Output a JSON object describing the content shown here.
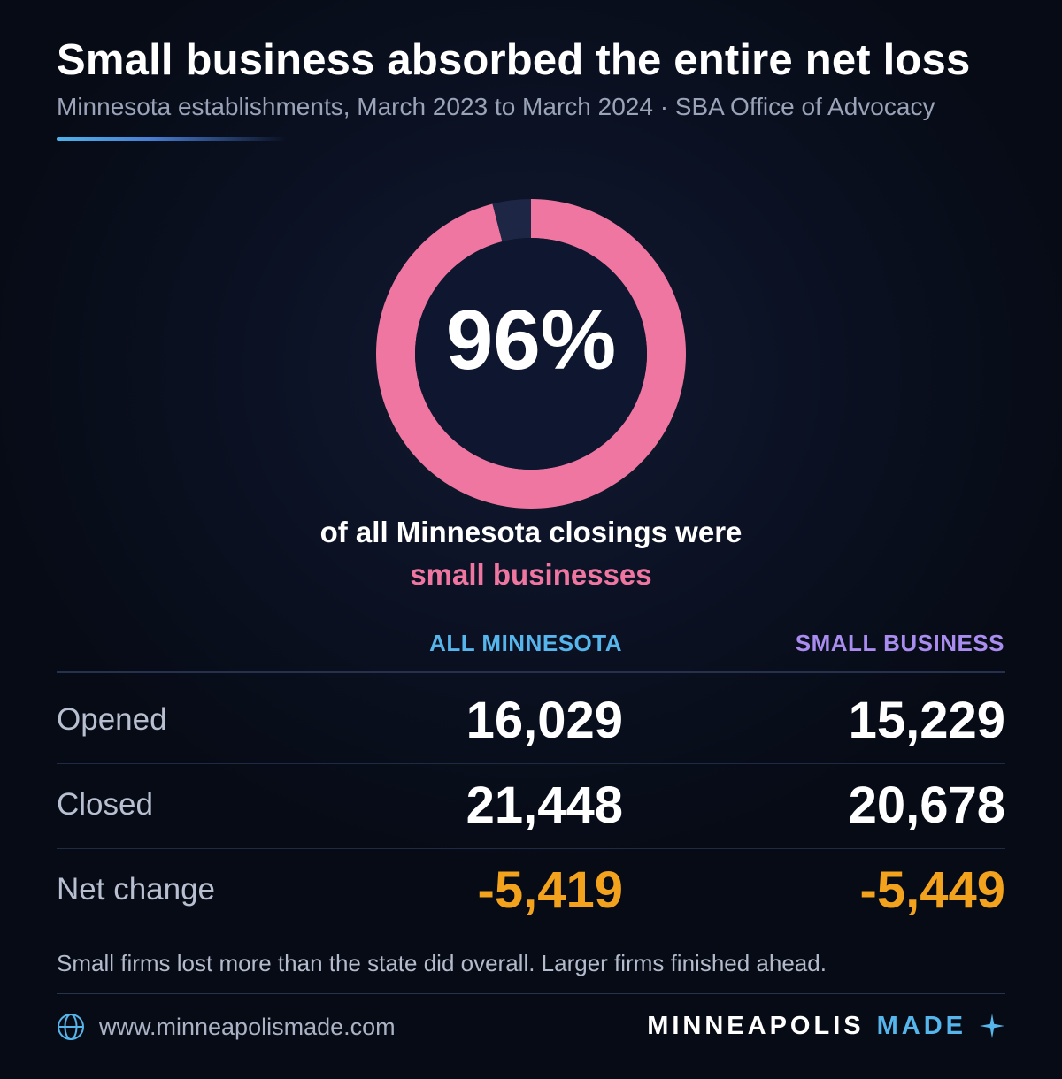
{
  "header": {
    "title": "Small business absorbed the entire net loss",
    "subtitle": "Minnesota establishments, March 2023 to March 2024 · SBA Office of Advocacy"
  },
  "highlight": {
    "value": "96%",
    "caption_line1": "of all Minnesota closings were",
    "caption_line2": "small businesses"
  },
  "chart_data": [
    {
      "type": "pie",
      "donut": true,
      "slices": [
        {
          "label": "small businesses",
          "value": 96,
          "color": "#ef76a0"
        },
        {
          "label": "",
          "value": 4,
          "color": "#1d2745"
        }
      ]
    },
    {
      "type": "table",
      "columns": [
        "",
        "ALL MINNESOTA",
        "SMALL BUSINESS"
      ],
      "rows": [
        {
          "label": "Opened",
          "all": "16,029",
          "small": "15,229"
        },
        {
          "label": "Closed",
          "all": "21,448",
          "small": "20,678"
        },
        {
          "label": "Net change",
          "all": "-5,419",
          "small": "-5,449"
        }
      ]
    }
  ],
  "table": {
    "col_all": "ALL MINNESOTA",
    "col_small": "SMALL BUSINESS",
    "rows": [
      {
        "label": "Opened",
        "all": "16,029",
        "small": "15,229"
      },
      {
        "label": "Closed",
        "all": "21,448",
        "small": "20,678"
      },
      {
        "label": "Net change",
        "all": "-5,419",
        "small": "-5,449"
      }
    ]
  },
  "note": "Small firms lost more than the state did overall. Larger firms finished ahead.",
  "footer": {
    "url": "www.minneapolismade.com",
    "brand_main": "MINNEAPOLIS",
    "brand_accent": "MADE",
    "url_icon": "globe-icon",
    "brand_icon": "sparkle-icon"
  },
  "colors": {
    "accent_pink": "#ef76a0",
    "accent_blue": "#56b6ec",
    "accent_purple": "#a98cf0",
    "negative_orange": "#f2a21c"
  }
}
